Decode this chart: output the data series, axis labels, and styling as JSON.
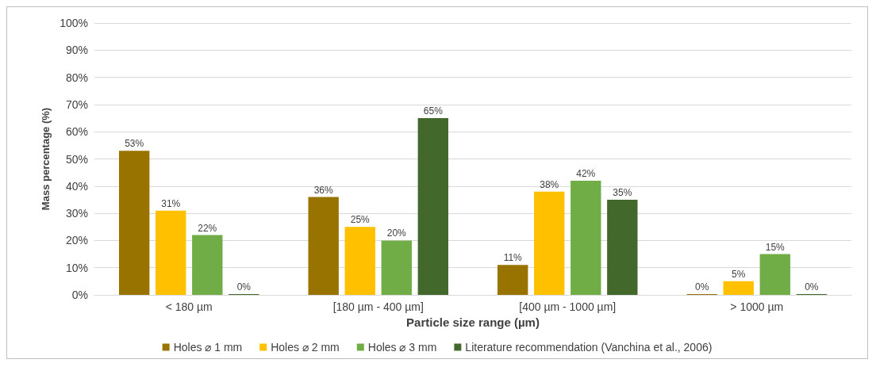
{
  "chart_data": {
    "type": "bar",
    "xlabel": "Particle size range (µm)",
    "ylabel": "Mass percentage (%)",
    "categories": [
      "< 180 µm",
      "[180 µm - 400 µm]",
      "[400 µm - 1000 µm]",
      "> 1000 µm"
    ],
    "series": [
      {
        "name": "Holes ⌀ 1 mm",
        "color": "#997300",
        "values": [
          53,
          36,
          11,
          0
        ],
        "value_labels": [
          "53%",
          "36%",
          "11%",
          "0%"
        ]
      },
      {
        "name": "Holes ⌀ 2 mm",
        "color": "#ffc000",
        "values": [
          31,
          25,
          38,
          5
        ],
        "value_labels": [
          "31%",
          "25%",
          "38%",
          "5%"
        ]
      },
      {
        "name": "Holes ⌀ 3 mm",
        "color": "#70ad47",
        "values": [
          22,
          20,
          42,
          15
        ],
        "value_labels": [
          "22%",
          "20%",
          "42%",
          "15%"
        ]
      },
      {
        "name": "Literature recommendation (Vanchina et al., 2006)",
        "color": "#43682b",
        "values": [
          0,
          65,
          35,
          0
        ],
        "value_labels": [
          "0%",
          "65%",
          "35%",
          "0%"
        ]
      }
    ],
    "ylim": [
      0,
      100
    ],
    "yticks": [
      {
        "value": 0,
        "label": "0%"
      },
      {
        "value": 10,
        "label": "10%"
      },
      {
        "value": 20,
        "label": "20%"
      },
      {
        "value": 30,
        "label": "30%"
      },
      {
        "value": 40,
        "label": "40%"
      },
      {
        "value": 50,
        "label": "50%"
      },
      {
        "value": 60,
        "label": "60%"
      },
      {
        "value": 70,
        "label": "70%"
      },
      {
        "value": 80,
        "label": "80%"
      },
      {
        "value": 90,
        "label": "90%"
      },
      {
        "value": 100,
        "label": "100%"
      }
    ],
    "grid": "y",
    "legend": "bottom"
  }
}
